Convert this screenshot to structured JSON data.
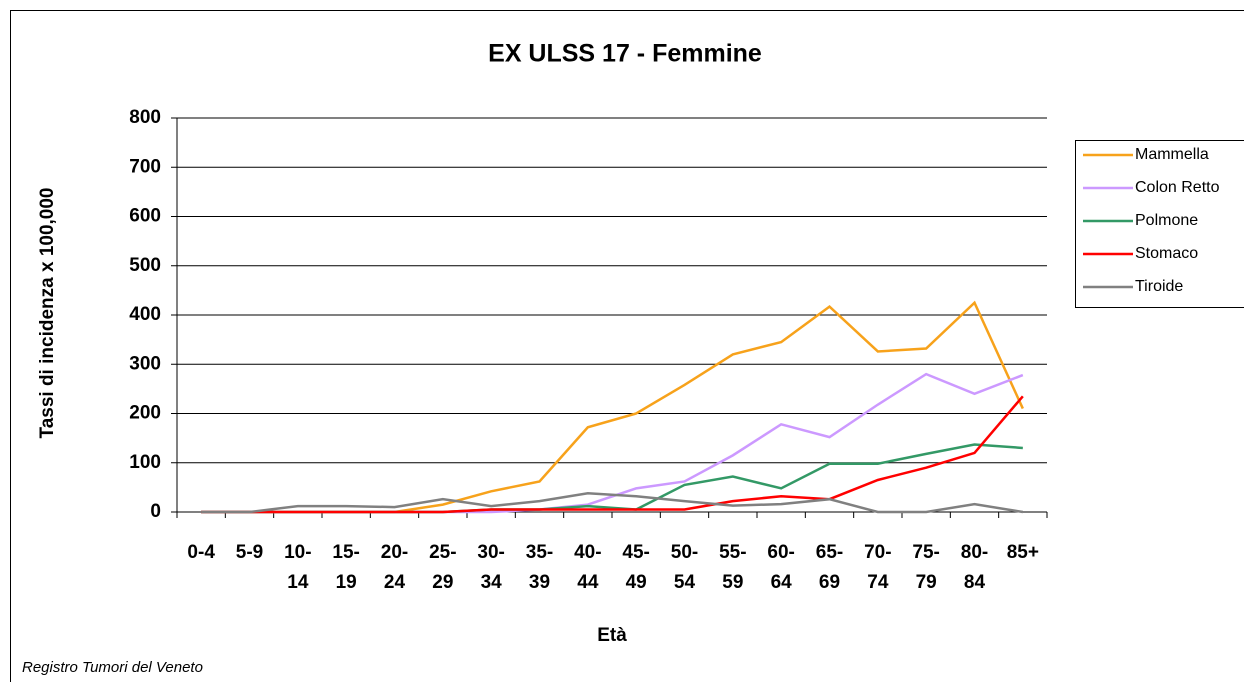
{
  "chart_data": {
    "type": "line",
    "title": "EX ULSS 17 - Femmine",
    "y_label": "Tassi di incidenza x 100,000",
    "x_label": "Età",
    "footnote": "Registro Tumori del Veneto",
    "categories": [
      "0-4",
      "5-9",
      "10-14",
      "15-19",
      "20-24",
      "25-29",
      "30-34",
      "35-39",
      "40-44",
      "45-49",
      "50-54",
      "55-59",
      "60-64",
      "65-69",
      "70-74",
      "75-79",
      "80-84",
      "85+"
    ],
    "series": [
      {
        "name": "Mammella",
        "color": "#f7a21b",
        "values": [
          0,
          0,
          0,
          0,
          0,
          15,
          42,
          62,
          172,
          200,
          258,
          320,
          345,
          417,
          326,
          332,
          425,
          210
        ]
      },
      {
        "name": "Colon Retto",
        "color": "#cc99ff",
        "values": [
          0,
          0,
          0,
          0,
          0,
          0,
          0,
          5,
          15,
          48,
          62,
          115,
          178,
          152,
          218,
          280,
          240,
          278
        ]
      },
      {
        "name": "Polmone",
        "color": "#339966",
        "values": [
          0,
          0,
          0,
          0,
          0,
          0,
          5,
          5,
          12,
          5,
          55,
          72,
          48,
          98,
          98,
          118,
          137,
          130
        ]
      },
      {
        "name": "Stomaco",
        "color": "#ff0000",
        "values": [
          0,
          0,
          0,
          0,
          0,
          0,
          5,
          5,
          5,
          5,
          5,
          22,
          32,
          26,
          65,
          90,
          120,
          235
        ]
      },
      {
        "name": "Tiroide",
        "color": "#808080",
        "values": [
          0,
          0,
          12,
          12,
          10,
          26,
          12,
          22,
          38,
          32,
          22,
          13,
          16,
          26,
          0,
          0,
          16,
          0
        ]
      }
    ],
    "ylim": [
      0,
      800
    ],
    "yticks": [
      0,
      100,
      200,
      300,
      400,
      500,
      600,
      700,
      800
    ],
    "grid": true,
    "legend": "right"
  }
}
